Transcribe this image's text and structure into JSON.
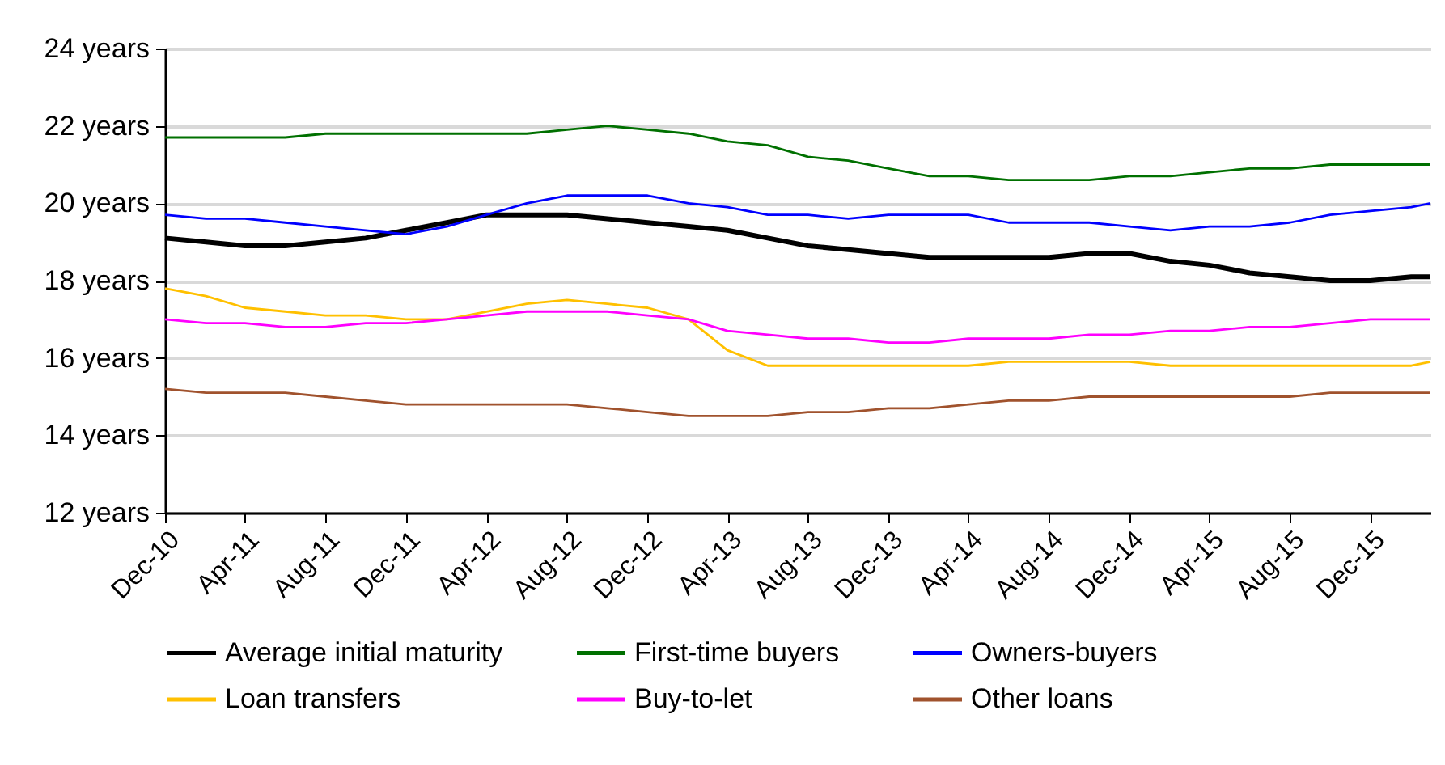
{
  "chart_data": {
    "type": "line",
    "x": [
      "2010-12",
      "2011-02",
      "2011-04",
      "2011-06",
      "2011-08",
      "2011-10",
      "2011-12",
      "2012-02",
      "2012-04",
      "2012-06",
      "2012-08",
      "2012-10",
      "2012-12",
      "2013-02",
      "2013-04",
      "2013-06",
      "2013-08",
      "2013-10",
      "2013-12",
      "2014-02",
      "2014-04",
      "2014-06",
      "2014-08",
      "2014-10",
      "2014-12",
      "2015-02",
      "2015-04",
      "2015-06",
      "2015-08",
      "2015-10",
      "2015-12",
      "2016-02",
      "2016-03"
    ],
    "series": [
      {
        "name": "Average initial maturity",
        "color": "#000000",
        "values": [
          19.1,
          19.0,
          18.9,
          18.9,
          19.0,
          19.1,
          19.3,
          19.5,
          19.7,
          19.7,
          19.7,
          19.6,
          19.5,
          19.4,
          19.3,
          19.1,
          18.9,
          18.8,
          18.7,
          18.6,
          18.6,
          18.6,
          18.6,
          18.7,
          18.7,
          18.5,
          18.4,
          18.2,
          18.1,
          18.0,
          18.0,
          18.1,
          18.1
        ]
      },
      {
        "name": "First-time buyers",
        "color": "#007000",
        "values": [
          21.7,
          21.7,
          21.7,
          21.7,
          21.8,
          21.8,
          21.8,
          21.8,
          21.8,
          21.8,
          21.9,
          22.0,
          21.9,
          21.8,
          21.6,
          21.5,
          21.2,
          21.1,
          20.9,
          20.7,
          20.7,
          20.6,
          20.6,
          20.6,
          20.7,
          20.7,
          20.8,
          20.9,
          20.9,
          21.0,
          21.0,
          21.0,
          21.0
        ]
      },
      {
        "name": "Owners-buyers",
        "color": "#0000ff",
        "values": [
          19.7,
          19.6,
          19.6,
          19.5,
          19.4,
          19.3,
          19.2,
          19.4,
          19.7,
          20.0,
          20.2,
          20.2,
          20.2,
          20.0,
          19.9,
          19.7,
          19.7,
          19.6,
          19.7,
          19.7,
          19.7,
          19.5,
          19.5,
          19.5,
          19.4,
          19.3,
          19.4,
          19.4,
          19.5,
          19.7,
          19.8,
          19.9,
          20.0
        ]
      },
      {
        "name": "Loan transfers",
        "color": "#ffc000",
        "values": [
          17.8,
          17.6,
          17.3,
          17.2,
          17.1,
          17.1,
          17.0,
          17.0,
          17.2,
          17.4,
          17.5,
          17.4,
          17.3,
          17.0,
          16.2,
          15.8,
          15.8,
          15.8,
          15.8,
          15.8,
          15.8,
          15.9,
          15.9,
          15.9,
          15.9,
          15.8,
          15.8,
          15.8,
          15.8,
          15.8,
          15.8,
          15.8,
          15.9
        ]
      },
      {
        "name": "Buy-to-let",
        "color": "#ff00ff",
        "values": [
          17.0,
          16.9,
          16.9,
          16.8,
          16.8,
          16.9,
          16.9,
          17.0,
          17.1,
          17.2,
          17.2,
          17.2,
          17.1,
          17.0,
          16.7,
          16.6,
          16.5,
          16.5,
          16.4,
          16.4,
          16.5,
          16.5,
          16.5,
          16.6,
          16.6,
          16.7,
          16.7,
          16.8,
          16.8,
          16.9,
          17.0,
          17.0,
          17.0
        ]
      },
      {
        "name": "Other loans",
        "color": "#a0522d",
        "values": [
          15.2,
          15.1,
          15.1,
          15.1,
          15.0,
          14.9,
          14.8,
          14.8,
          14.8,
          14.8,
          14.8,
          14.7,
          14.6,
          14.5,
          14.5,
          14.5,
          14.6,
          14.6,
          14.7,
          14.7,
          14.8,
          14.9,
          14.9,
          15.0,
          15.0,
          15.0,
          15.0,
          15.0,
          15.0,
          15.1,
          15.1,
          15.1,
          15.1
        ]
      }
    ],
    "xlim": [
      "2010-12",
      "2016-03"
    ],
    "xticks": [
      {
        "value": "2010-12",
        "label": "Dec-10"
      },
      {
        "value": "2011-04",
        "label": "Apr-11"
      },
      {
        "value": "2011-08",
        "label": "Aug-11"
      },
      {
        "value": "2011-12",
        "label": "Dec-11"
      },
      {
        "value": "2012-04",
        "label": "Apr-12"
      },
      {
        "value": "2012-08",
        "label": "Aug-12"
      },
      {
        "value": "2012-12",
        "label": "Dec-12"
      },
      {
        "value": "2013-04",
        "label": "Apr-13"
      },
      {
        "value": "2013-08",
        "label": "Aug-13"
      },
      {
        "value": "2013-12",
        "label": "Dec-13"
      },
      {
        "value": "2014-04",
        "label": "Apr-14"
      },
      {
        "value": "2014-08",
        "label": "Aug-14"
      },
      {
        "value": "2014-12",
        "label": "Dec-14"
      },
      {
        "value": "2015-04",
        "label": "Apr-15"
      },
      {
        "value": "2015-08",
        "label": "Aug-15"
      },
      {
        "value": "2015-12",
        "label": "Dec-15"
      }
    ],
    "ylim": [
      12,
      24
    ],
    "yticks": [
      {
        "value": 12,
        "label": "12 years"
      },
      {
        "value": 14,
        "label": "14 years"
      },
      {
        "value": 16,
        "label": "16 years"
      },
      {
        "value": 18,
        "label": "18 years"
      },
      {
        "value": 20,
        "label": "20 years"
      },
      {
        "value": 22,
        "label": "22 years"
      },
      {
        "value": 24,
        "label": "24 years"
      }
    ],
    "grid": "y",
    "legend": "bottom",
    "marker": "none",
    "line_style": "solid"
  }
}
